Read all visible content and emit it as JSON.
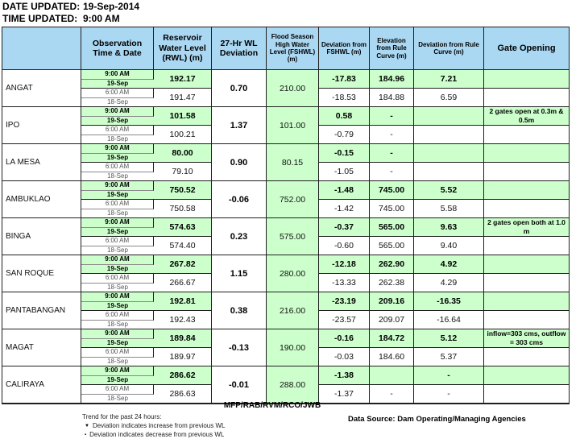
{
  "meta": {
    "date_label": "DATE UPDATED:",
    "date_value": "19-Sep-2014",
    "time_label": "TIME UPDATED:",
    "time_value": "9:00 AM"
  },
  "table": {
    "headers": [
      "",
      "Observation Time & Date",
      "Reservoir Water Level (RWL) (m)",
      "27-Hr WL Deviation",
      "Flood Season High Water Level (FSHWL) (m)",
      "Deviation from FSHWL (m)",
      "Elevation from Rule Curve (m)",
      "Deviation from Rule Curve (m)",
      "Gate Opening"
    ],
    "obs_labels": {
      "time_now": "9:00 AM",
      "date_now": "19-Sep",
      "time_prev": "6:00 AM",
      "date_prev": "18-Sep"
    },
    "rows": [
      {
        "dam": "ANGAT",
        "rwl_now": "192.17",
        "rwl_prev": "191.47",
        "wl_dev_27hr": "0.70",
        "fshwl": "210.00",
        "dev_fshwl_now": "-17.83",
        "dev_fshwl_prev": "-18.53",
        "elev_rule_now": "184.96",
        "elev_rule_prev": "184.88",
        "dev_rule_now": "7.21",
        "dev_rule_prev": "6.59",
        "gate": ""
      },
      {
        "dam": "IPO",
        "rwl_now": "101.58",
        "rwl_prev": "100.21",
        "wl_dev_27hr": "1.37",
        "fshwl": "101.00",
        "dev_fshwl_now": "0.58",
        "dev_fshwl_prev": "-0.79",
        "elev_rule_now": "-",
        "elev_rule_prev": "-",
        "dev_rule_now": "",
        "dev_rule_prev": "",
        "gate": "2 gates open at 0.3m & 0.5m"
      },
      {
        "dam": "LA MESA",
        "rwl_now": "80.00",
        "rwl_prev": "79.10",
        "wl_dev_27hr": "0.90",
        "fshwl": "80.15",
        "dev_fshwl_now": "-0.15",
        "dev_fshwl_prev": "-1.05",
        "elev_rule_now": "-",
        "elev_rule_prev": "-",
        "dev_rule_now": "",
        "dev_rule_prev": "",
        "gate": ""
      },
      {
        "dam": "AMBUKLAO",
        "rwl_now": "750.52",
        "rwl_prev": "750.58",
        "wl_dev_27hr": "-0.06",
        "fshwl": "752.00",
        "dev_fshwl_now": "-1.48",
        "dev_fshwl_prev": "-1.42",
        "elev_rule_now": "745.00",
        "elev_rule_prev": "745.00",
        "dev_rule_now": "5.52",
        "dev_rule_prev": "5.58",
        "gate": ""
      },
      {
        "dam": "BINGA",
        "rwl_now": "574.63",
        "rwl_prev": "574.40",
        "wl_dev_27hr": "0.23",
        "fshwl": "575.00",
        "dev_fshwl_now": "-0.37",
        "dev_fshwl_prev": "-0.60",
        "elev_rule_now": "565.00",
        "elev_rule_prev": "565.00",
        "dev_rule_now": "9.63",
        "dev_rule_prev": "9.40",
        "gate": "2 gates open both at 1.0 m"
      },
      {
        "dam": "SAN ROQUE",
        "rwl_now": "267.82",
        "rwl_prev": "266.67",
        "wl_dev_27hr": "1.15",
        "fshwl": "280.00",
        "dev_fshwl_now": "-12.18",
        "dev_fshwl_prev": "-13.33",
        "elev_rule_now": "262.90",
        "elev_rule_prev": "262.38",
        "dev_rule_now": "4.92",
        "dev_rule_prev": "4.29",
        "gate": ""
      },
      {
        "dam": "PANTABANGAN",
        "rwl_now": "192.81",
        "rwl_prev": "192.43",
        "wl_dev_27hr": "0.38",
        "fshwl": "216.00",
        "dev_fshwl_now": "-23.19",
        "dev_fshwl_prev": "-23.57",
        "elev_rule_now": "209.16",
        "elev_rule_prev": "209.07",
        "dev_rule_now": "-16.35",
        "dev_rule_prev": "-16.64",
        "gate": ""
      },
      {
        "dam": "MAGAT",
        "rwl_now": "189.84",
        "rwl_prev": "189.97",
        "wl_dev_27hr": "-0.13",
        "fshwl": "190.00",
        "dev_fshwl_now": "-0.16",
        "dev_fshwl_prev": "-0.03",
        "elev_rule_now": "184.72",
        "elev_rule_prev": "184.60",
        "dev_rule_now": "5.12",
        "dev_rule_prev": "5.37",
        "gate": "inflow=303 cms, outflow = 303 cms"
      },
      {
        "dam": "CALIRAYA",
        "rwl_now": "286.62",
        "rwl_prev": "286.63",
        "wl_dev_27hr": "-0.01",
        "fshwl": "288.00",
        "dev_fshwl_now": "-1.38",
        "dev_fshwl_prev": "-1.37",
        "elev_rule_now": "",
        "elev_rule_prev": "-",
        "dev_rule_now": "-",
        "dev_rule_prev": "-",
        "gate": ""
      }
    ]
  },
  "footer": {
    "initials": "MFP/RAB/RVM/RCO/JWB",
    "trend_title": "Trend for the past 24 hours:",
    "trend_items": [
      {
        "marker": "▼",
        "text": "Deviation indicates increase from previous WL"
      },
      {
        "marker": "▪",
        "text": "Deviation indicates decrease from previous WL"
      }
    ],
    "data_source": "Data Source: Dam Operating/Managing  Agencies"
  },
  "colors": {
    "header_blue": "#aad7f2",
    "highlight_green": "#ccffcc"
  }
}
